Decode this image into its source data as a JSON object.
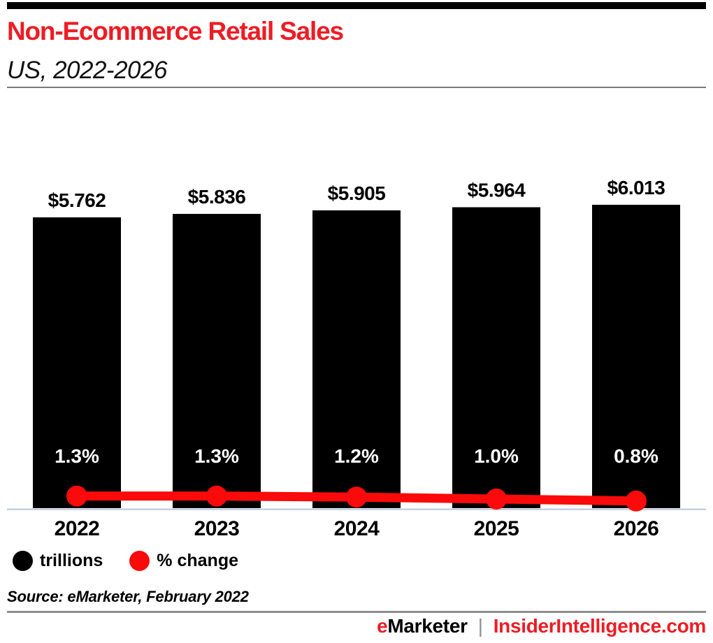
{
  "header": {
    "title": "Non-Ecommerce Retail Sales",
    "subtitle": "US, 2022-2026",
    "title_color": "#ed1c24"
  },
  "chart_data": {
    "type": "bar",
    "combo": "bars with overlaid line",
    "categories": [
      "2022",
      "2023",
      "2024",
      "2025",
      "2026"
    ],
    "series": [
      {
        "name": "trillions",
        "type": "bar",
        "unit": "US$ trillions",
        "values": [
          5.762,
          5.836,
          5.905,
          5.964,
          6.013
        ],
        "labels": [
          "$5.762",
          "$5.836",
          "$5.905",
          "$5.964",
          "$6.013"
        ],
        "color": "#000000",
        "label_color": "#000000"
      },
      {
        "name": "% change",
        "type": "line",
        "unit": "percent",
        "values": [
          1.3,
          1.3,
          1.2,
          1.0,
          0.8
        ],
        "labels": [
          "1.3%",
          "1.3%",
          "1.2%",
          "1.0%",
          "0.8%"
        ],
        "color": "#fa0a0a",
        "label_color": "#ffffff"
      }
    ],
    "ylim_bars": [
      0,
      6.013
    ],
    "grid": false,
    "axis_line_color": "#c7cfe2",
    "legend_position": "bottom-left",
    "legend": [
      {
        "label": "trillions",
        "color": "#000000"
      },
      {
        "label": "% change",
        "color": "#fa0a0a"
      }
    ]
  },
  "source": {
    "text": "Source: eMarketer, February 2022"
  },
  "footer": {
    "brand_first_letter": "e",
    "brand_rest": "Marketer",
    "separator": "|",
    "site": "InsiderIntelligence.com",
    "brand_accent_color": "#ed1c24",
    "site_color": "#ed1c24"
  }
}
